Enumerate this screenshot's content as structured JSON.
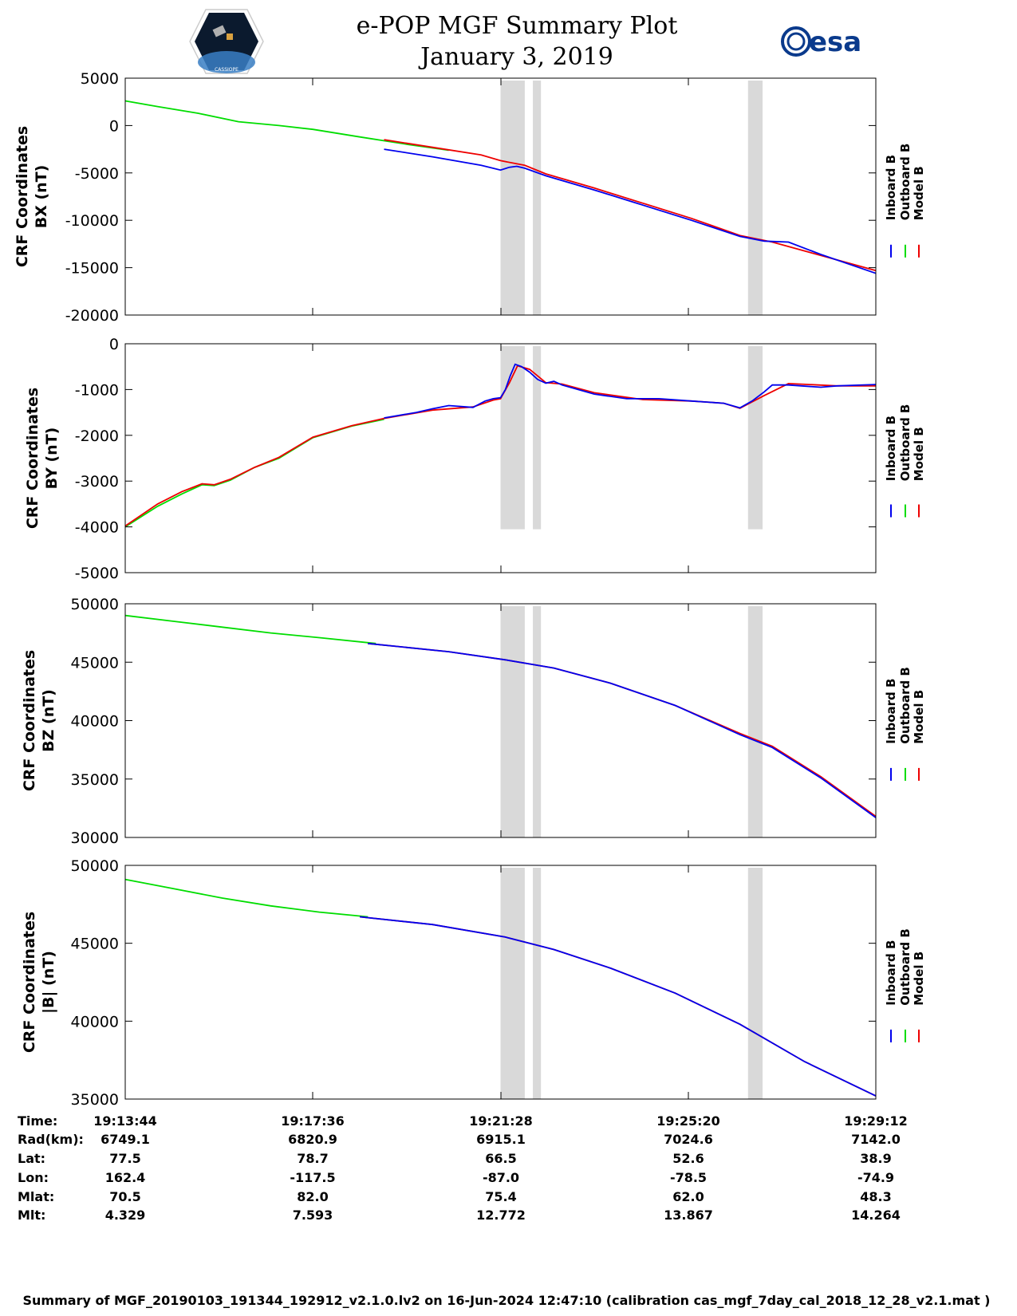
{
  "header": {
    "title": "e-POP MGF Summary Plot",
    "date": "January 3, 2019",
    "left_logo": "cassiope-mission-logo",
    "right_logo": "esa-logo",
    "right_logo_text": "esa",
    "left_logo_text": "CASSIOPE"
  },
  "colors": {
    "inboard": "#0000ee",
    "outboard": "#00dd00",
    "model": "#ee0000",
    "gap_shading": "#d9d9d9"
  },
  "chart_data": [
    {
      "type": "line",
      "ylabel_line1": "CRF Coordinates",
      "ylabel_line2": "BX (nT)",
      "ylim": [
        -20000,
        5000
      ],
      "yticks": [
        5000,
        0,
        -5000,
        -10000,
        -15000,
        -20000
      ],
      "ytick_labels": [
        "5000",
        "0",
        "-5000",
        "-10000",
        "-15000",
        "-20000"
      ],
      "xlim": [
        0,
        928
      ],
      "gaps": [
        [
          464,
          494
        ],
        [
          504,
          514
        ],
        [
          770,
          788
        ]
      ],
      "legend": [
        "Inboard B",
        "Outboard B",
        "Model B"
      ],
      "series": [
        {
          "name": "Outboard B",
          "x": [
            0,
            40,
            90,
            140,
            190,
            232,
            290,
            350,
            400
          ],
          "y": [
            2600,
            2000,
            1300,
            400,
            0,
            -400,
            -1200,
            -2000,
            -2600
          ]
        },
        {
          "name": "Model B",
          "x": [
            320,
            380,
            440,
            464,
            494,
            520,
            580,
            640,
            700,
            760,
            800,
            860,
            928
          ],
          "y": [
            -1500,
            -2300,
            -3100,
            -3700,
            -4200,
            -5100,
            -6600,
            -8200,
            -9800,
            -11600,
            -12300,
            -13700,
            -15300
          ]
        },
        {
          "name": "Inboard B",
          "x": [
            320,
            380,
            440,
            464,
            475,
            484,
            494,
            520,
            580,
            640,
            700,
            760,
            790,
            820,
            860,
            928
          ],
          "y": [
            -2500,
            -3300,
            -4200,
            -4700,
            -4400,
            -4300,
            -4500,
            -5300,
            -6800,
            -8400,
            -10000,
            -11700,
            -12200,
            -12300,
            -13600,
            -15600
          ]
        }
      ]
    },
    {
      "type": "line",
      "ylabel_line1": "CRF Coordinates",
      "ylabel_line2": "BY (nT)",
      "ylim": [
        -5000,
        0
      ],
      "yticks": [
        0,
        -1000,
        -2000,
        -3000,
        -4000,
        -5000
      ],
      "ytick_labels": [
        "0",
        "-1000",
        "-2000",
        "-3000",
        "-4000",
        "-5000"
      ],
      "xlim": [
        0,
        928
      ],
      "gaps": [
        [
          464,
          494
        ],
        [
          504,
          514
        ],
        [
          770,
          788
        ]
      ],
      "legend": [
        "Inboard B",
        "Outboard B",
        "Model B"
      ],
      "series": [
        {
          "name": "Outboard B",
          "x": [
            0,
            40,
            70,
            95,
            110,
            130,
            160,
            190,
            232,
            280,
            320
          ],
          "y": [
            -4000,
            -3550,
            -3280,
            -3080,
            -3100,
            -2980,
            -2700,
            -2500,
            -2050,
            -1800,
            -1650
          ]
        },
        {
          "name": "Model B",
          "x": [
            0,
            40,
            70,
            95,
            110,
            130,
            160,
            190,
            232,
            280,
            320,
            380,
            430,
            455,
            464,
            475,
            485,
            500,
            520,
            540,
            580,
            640,
            700,
            740,
            760,
            790,
            820,
            880,
            928
          ],
          "y": [
            -3980,
            -3500,
            -3230,
            -3060,
            -3080,
            -2960,
            -2700,
            -2480,
            -2040,
            -1790,
            -1630,
            -1450,
            -1380,
            -1230,
            -1200,
            -850,
            -480,
            -560,
            -850,
            -880,
            -1070,
            -1220,
            -1250,
            -1300,
            -1410,
            -1130,
            -870,
            -920,
            -920
          ]
        },
        {
          "name": "Inboard B",
          "x": [
            320,
            360,
            380,
            400,
            430,
            445,
            455,
            464,
            470,
            476,
            482,
            490,
            500,
            510,
            520,
            530,
            540,
            560,
            580,
            620,
            660,
            700,
            740,
            760,
            775,
            790,
            800,
            820,
            860,
            880,
            928
          ],
          "y": [
            -1620,
            -1500,
            -1420,
            -1350,
            -1390,
            -1250,
            -1200,
            -1180,
            -1000,
            -700,
            -450,
            -500,
            -620,
            -780,
            -860,
            -820,
            -900,
            -1000,
            -1100,
            -1200,
            -1200,
            -1250,
            -1300,
            -1400,
            -1250,
            -1050,
            -900,
            -900,
            -950,
            -920,
            -890
          ]
        }
      ]
    },
    {
      "type": "line",
      "ylabel_line1": "CRF Coordinates",
      "ylabel_line2": "BZ (nT)",
      "ylim": [
        30000,
        50000
      ],
      "yticks": [
        50000,
        45000,
        40000,
        35000,
        30000
      ],
      "ytick_labels": [
        "50000",
        "45000",
        "40000",
        "35000",
        "30000"
      ],
      "xlim": [
        0,
        928
      ],
      "gaps": [
        [
          464,
          494
        ],
        [
          504,
          514
        ],
        [
          770,
          788
        ]
      ],
      "legend": [
        "Inboard B",
        "Outboard B",
        "Model B"
      ],
      "series": [
        {
          "name": "Outboard B",
          "x": [
            0,
            60,
            120,
            180,
            240,
            310
          ],
          "y": [
            49000,
            48500,
            48000,
            47500,
            47100,
            46600
          ]
        },
        {
          "name": "Model B",
          "x": [
            300,
            400,
            470,
            530,
            600,
            680,
            760,
            800,
            860,
            928
          ],
          "y": [
            46600,
            45900,
            45200,
            44500,
            43200,
            41300,
            38900,
            37800,
            35200,
            31800
          ]
        },
        {
          "name": "Inboard B",
          "x": [
            300,
            400,
            470,
            530,
            600,
            680,
            760,
            800,
            860,
            928
          ],
          "y": [
            46600,
            45900,
            45200,
            44500,
            43200,
            41300,
            38800,
            37700,
            35100,
            31700
          ]
        }
      ]
    },
    {
      "type": "line",
      "ylabel_line1": "CRF Coordinates",
      "ylabel_line2": "|B| (nT)",
      "ylim": [
        35000,
        50000
      ],
      "yticks": [
        50000,
        45000,
        40000,
        35000
      ],
      "ytick_labels": [
        "50000",
        "45000",
        "40000",
        "35000"
      ],
      "xlim": [
        0,
        928
      ],
      "gaps": [
        [
          464,
          494
        ],
        [
          504,
          514
        ],
        [
          770,
          788
        ]
      ],
      "legend": [
        "Inboard B",
        "Outboard B",
        "Model B"
      ],
      "series": [
        {
          "name": "Outboard B",
          "x": [
            0,
            60,
            120,
            180,
            240,
            300
          ],
          "y": [
            49100,
            48500,
            47900,
            47400,
            47000,
            46700
          ]
        },
        {
          "name": "Model B",
          "x": [
            290,
            380,
            470,
            530,
            600,
            680,
            760,
            840,
            928
          ],
          "y": [
            46700,
            46200,
            45400,
            44600,
            43400,
            41800,
            39800,
            37400,
            35200
          ]
        },
        {
          "name": "Inboard B",
          "x": [
            290,
            380,
            470,
            530,
            600,
            680,
            760,
            840,
            928
          ],
          "y": [
            46700,
            46200,
            45400,
            44600,
            43400,
            41800,
            39800,
            37400,
            35200
          ]
        }
      ]
    }
  ],
  "orbit_table": {
    "row_labels": [
      "Time:",
      "Rad(km):",
      "Lat:",
      "Lon:",
      "Mlat:",
      "Mlt:"
    ],
    "columns": [
      [
        "19:13:44",
        "6749.1",
        "77.5",
        "162.4",
        "70.5",
        "4.329"
      ],
      [
        "19:17:36",
        "6820.9",
        "78.7",
        "-117.5",
        "82.0",
        "7.593"
      ],
      [
        "19:21:28",
        "6915.1",
        "66.5",
        "-87.0",
        "75.4",
        "12.772"
      ],
      [
        "19:25:20",
        "7024.6",
        "52.6",
        "-78.5",
        "62.0",
        "13.867"
      ],
      [
        "19:29:12",
        "7142.0",
        "38.9",
        "-74.9",
        "48.3",
        "14.264"
      ]
    ]
  },
  "footer": "Summary of MGF_20190103_191344_192912_v2.1.0.lv2 on 16-Jun-2024 12:47:10 (calibration cas_mgf_7day_cal_2018_12_28_v2.1.mat )"
}
